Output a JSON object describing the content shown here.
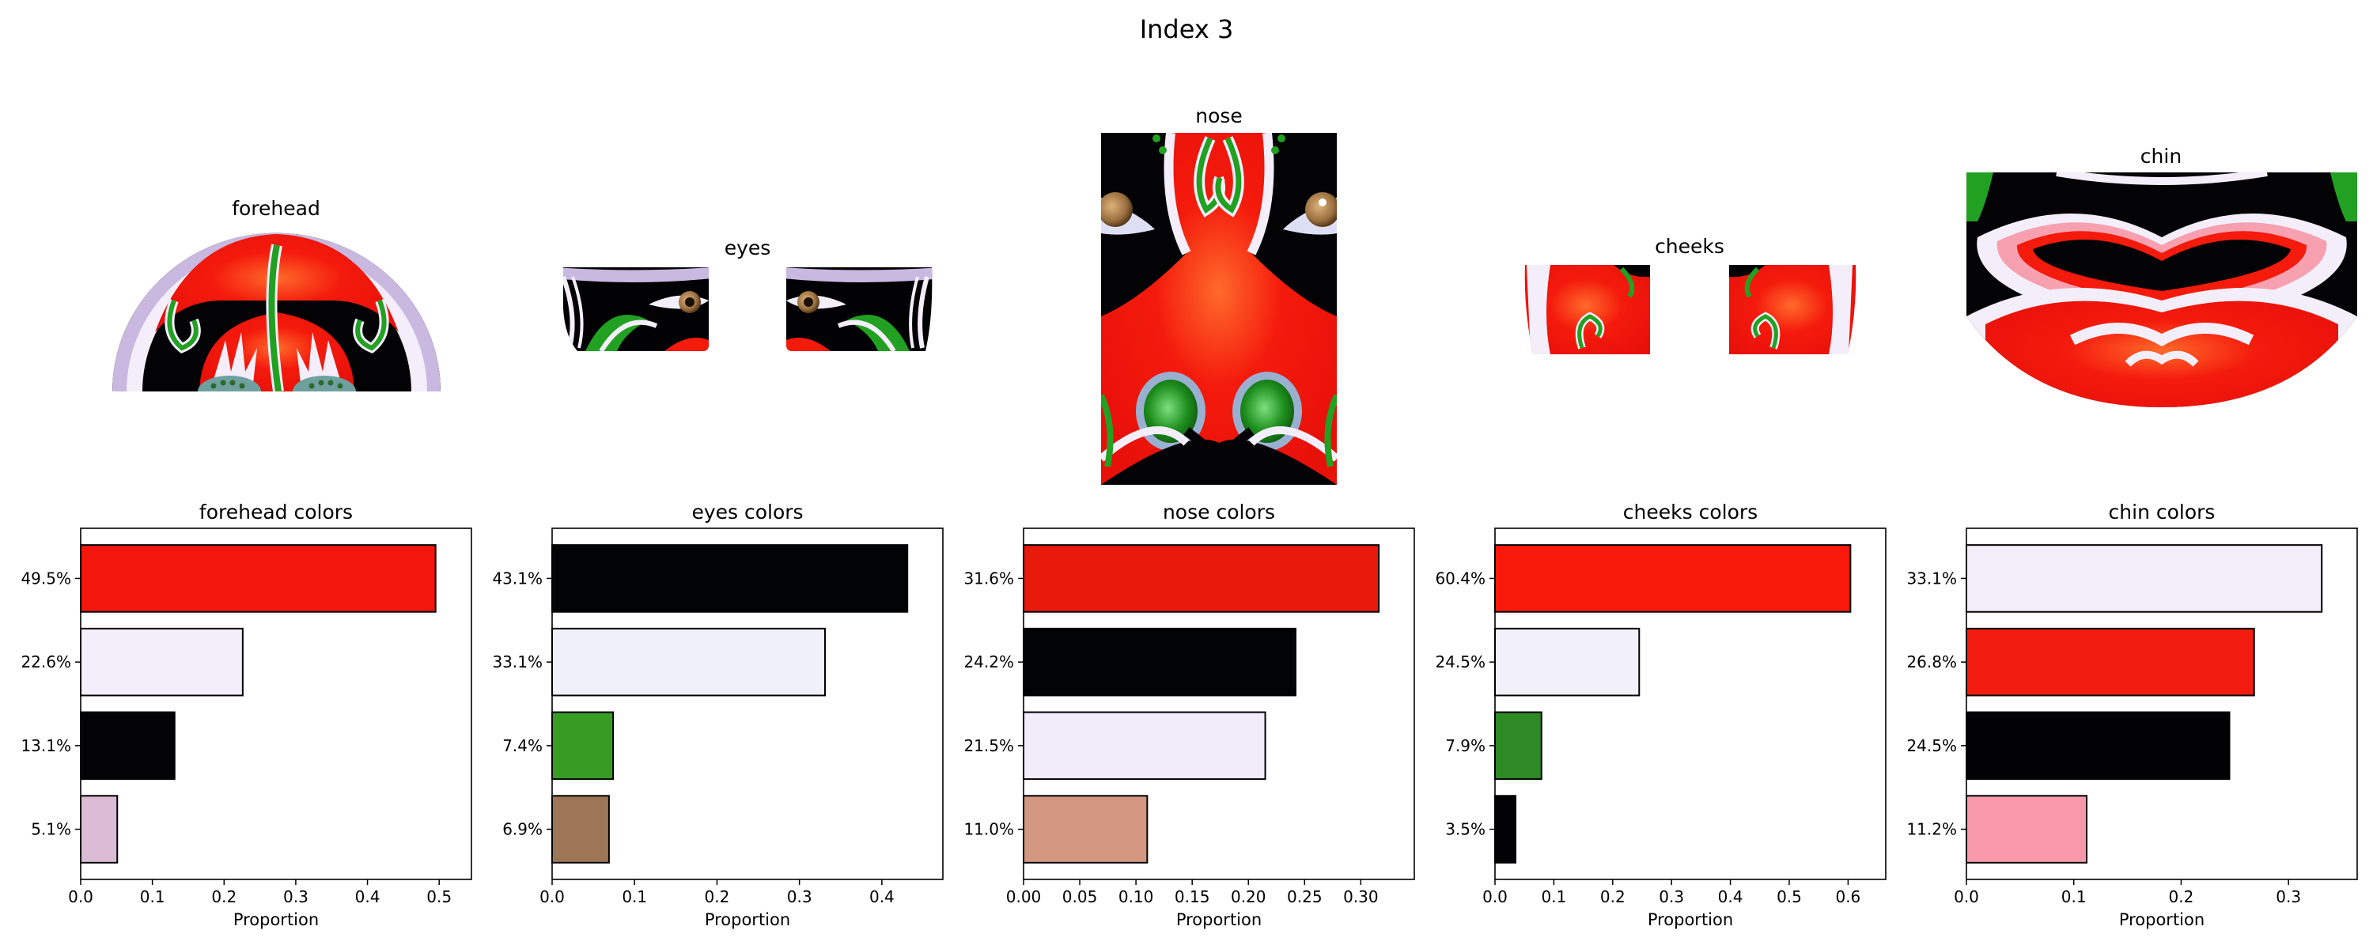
{
  "title": "Index 3",
  "region_titles": [
    "forehead",
    "eyes",
    "nose",
    "cheeks",
    "chin"
  ],
  "colors": {
    "red": "#f41a0c",
    "black": "#030305",
    "white": "#f3eefa",
    "lavender": "#c9b8e0",
    "green": "#22a022",
    "pink": "#f6a0b0",
    "brown": "#a07050",
    "iris": "#9a7040"
  },
  "chart_data": [
    {
      "type": "bar",
      "orientation": "horizontal",
      "title": "forehead colors",
      "xlabel": "Proportion",
      "categories": [
        "49.5%",
        "22.6%",
        "13.1%",
        "5.1%"
      ],
      "values": [
        0.495,
        0.226,
        0.131,
        0.051
      ],
      "bar_colors": [
        "#f2160d",
        "#f3eefa",
        "#030306",
        "#dabcd7"
      ],
      "xlim": [
        0,
        0.545
      ],
      "xticks": [
        "0.0",
        "0.1",
        "0.2",
        "0.3",
        "0.4",
        "0.5"
      ],
      "xtick_values": [
        0,
        0.1,
        0.2,
        0.3,
        0.4,
        0.5
      ]
    },
    {
      "type": "bar",
      "orientation": "horizontal",
      "title": "eyes colors",
      "xlabel": "Proportion",
      "categories": [
        "43.1%",
        "33.1%",
        "7.4%",
        "6.9%"
      ],
      "values": [
        0.431,
        0.331,
        0.074,
        0.069
      ],
      "bar_colors": [
        "#020305",
        "#eff0fa",
        "#369c24",
        "#9d7658"
      ],
      "xlim": [
        0,
        0.474
      ],
      "xticks": [
        "0.0",
        "0.1",
        "0.2",
        "0.3",
        "0.4"
      ],
      "xtick_values": [
        0,
        0.1,
        0.2,
        0.3,
        0.4
      ]
    },
    {
      "type": "bar",
      "orientation": "horizontal",
      "title": "nose colors",
      "xlabel": "Proportion",
      "categories": [
        "31.6%",
        "24.2%",
        "21.5%",
        "11.0%"
      ],
      "values": [
        0.316,
        0.242,
        0.215,
        0.11
      ],
      "bar_colors": [
        "#e91a0c",
        "#020305",
        "#f2ebf9",
        "#d39782"
      ],
      "xlim": [
        0,
        0.3476
      ],
      "xticks": [
        "0.00",
        "0.05",
        "0.10",
        "0.15",
        "0.20",
        "0.25",
        "0.30"
      ],
      "xtick_values": [
        0,
        0.05,
        0.1,
        0.15,
        0.2,
        0.25,
        0.3
      ]
    },
    {
      "type": "bar",
      "orientation": "horizontal",
      "title": "cheeks colors",
      "xlabel": "Proportion",
      "categories": [
        "60.4%",
        "24.5%",
        "7.9%",
        "3.5%"
      ],
      "values": [
        0.604,
        0.245,
        0.079,
        0.035
      ],
      "bar_colors": [
        "#f8190a",
        "#f2f0fb",
        "#2d8a24",
        "#020204"
      ],
      "xlim": [
        0,
        0.664
      ],
      "xticks": [
        "0.0",
        "0.1",
        "0.2",
        "0.3",
        "0.4",
        "0.5",
        "0.6"
      ],
      "xtick_values": [
        0,
        0.1,
        0.2,
        0.3,
        0.4,
        0.5,
        0.6
      ]
    },
    {
      "type": "bar",
      "orientation": "horizontal",
      "title": "chin colors",
      "xlabel": "Proportion",
      "categories": [
        "33.1%",
        "26.8%",
        "24.5%",
        "11.2%"
      ],
      "values": [
        0.331,
        0.268,
        0.245,
        0.112
      ],
      "bar_colors": [
        "#f3effa",
        "#f21d10",
        "#020204",
        "#f799aa"
      ],
      "xlim": [
        0,
        0.364
      ],
      "xticks": [
        "0.0",
        "0.1",
        "0.2",
        "0.3"
      ],
      "xtick_values": [
        0,
        0.1,
        0.2,
        0.3
      ]
    }
  ]
}
